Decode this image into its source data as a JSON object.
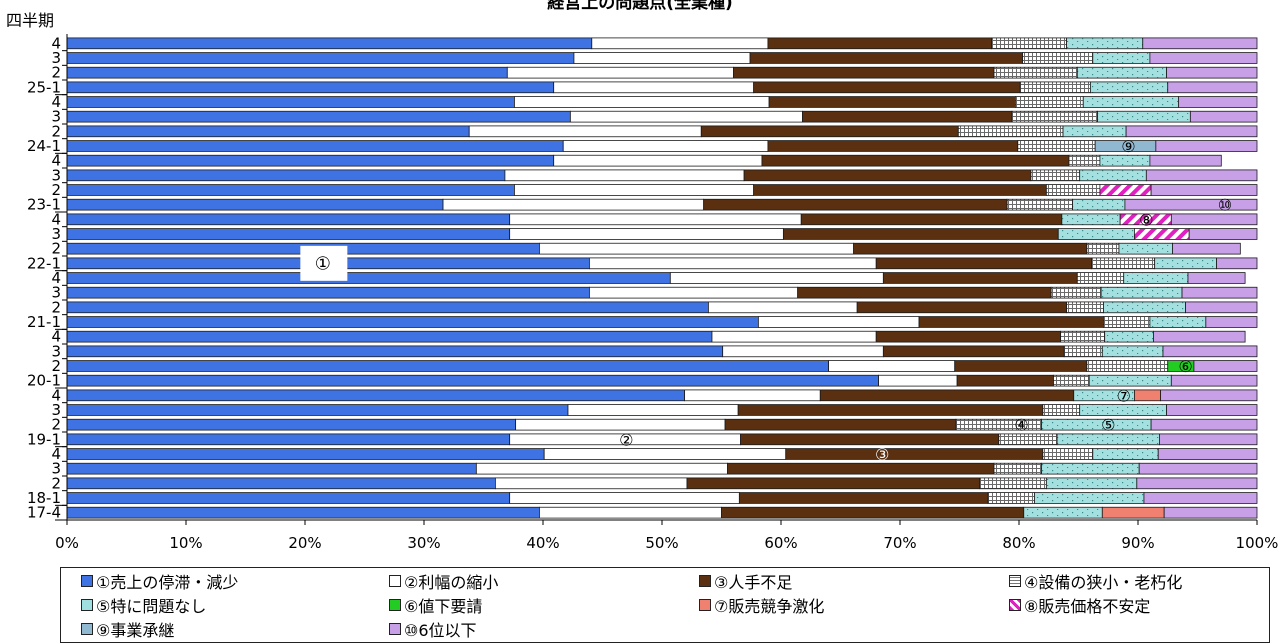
{
  "chart_data": {
    "type": "bar",
    "orientation": "horizontal",
    "stacked": "100%",
    "title": "経営上の問題点(全業種)",
    "ylabel": "四半期",
    "xlim": [
      0,
      100
    ],
    "x_ticks": [
      "0%",
      "10%",
      "20%",
      "30%",
      "40%",
      "50%",
      "60%",
      "70%",
      "80%",
      "90%",
      "100%"
    ],
    "grid": false,
    "legend_position": "bottom",
    "categories": [
      "4",
      "3",
      "2",
      "25-1",
      "4",
      "3",
      "2",
      "24-1",
      "4",
      "3",
      "2",
      "23-1",
      "4",
      "3",
      "2",
      "22-1",
      "4",
      "3",
      "2",
      "21-1",
      "4",
      "3",
      "2",
      "20-1",
      "4",
      "3",
      "2",
      "19-1",
      "4",
      "3",
      "2",
      "18-1",
      "17-4"
    ],
    "series": [
      {
        "name": "①売上の停滞・減少",
        "color": "#3f73e3",
        "values": [
          44.1,
          42.6,
          37.0,
          40.9,
          37.6,
          42.3,
          33.8,
          41.7,
          40.9,
          36.8,
          37.6,
          31.6,
          37.2,
          37.2,
          39.7,
          43.9,
          50.7,
          43.9,
          53.9,
          58.1,
          54.2,
          55.1,
          64.0,
          68.2,
          51.9,
          42.1,
          37.7,
          37.2,
          40.1,
          34.4,
          36.0,
          37.2,
          39.7
        ]
      },
      {
        "name": "②利幅の縮小",
        "color": "#ffffff",
        "values": [
          14.8,
          14.8,
          19.0,
          16.8,
          21.4,
          19.5,
          19.5,
          17.2,
          17.5,
          20.1,
          20.1,
          21.9,
          24.5,
          23.0,
          26.4,
          24.1,
          17.9,
          17.5,
          12.5,
          13.5,
          13.8,
          13.5,
          10.6,
          6.6,
          11.4,
          14.3,
          17.6,
          19.4,
          20.3,
          21.1,
          16.1,
          19.3,
          15.3
        ]
      },
      {
        "name": "③人手不足",
        "color": "#5a3011",
        "values": [
          18.8,
          22.9,
          21.9,
          22.4,
          20.7,
          17.6,
          21.6,
          21.0,
          25.8,
          24.1,
          24.6,
          25.5,
          21.9,
          23.1,
          19.6,
          18.1,
          16.3,
          21.3,
          17.6,
          15.5,
          15.5,
          15.2,
          11.1,
          8.1,
          21.3,
          25.6,
          19.4,
          21.7,
          21.6,
          22.4,
          24.6,
          20.9,
          25.4
        ]
      },
      {
        "name": "④設備の狭小・老朽化",
        "color": "#cfcfcf",
        "values": [
          6.3,
          5.9,
          7.0,
          5.9,
          5.7,
          7.2,
          8.8,
          6.5,
          2.6,
          4.1,
          4.5,
          5.5,
          0.0,
          0.0,
          2.7,
          5.3,
          3.9,
          4.2,
          3.1,
          3.9,
          3.7,
          3.2,
          6.8,
          3.0,
          0.0,
          3.1,
          7.2,
          4.9,
          4.2,
          4.0,
          5.6,
          3.9,
          0.0
        ]
      },
      {
        "name": "⑤特に問題なし",
        "color": "#9fdfdf",
        "values": [
          6.4,
          4.8,
          7.5,
          6.5,
          8.0,
          7.8,
          5.3,
          0.0,
          4.2,
          5.6,
          0.0,
          4.4,
          4.9,
          6.4,
          4.5,
          5.2,
          5.4,
          6.8,
          6.9,
          4.7,
          4.1,
          5.1,
          0.0,
          6.9,
          5.1,
          7.3,
          9.2,
          8.6,
          5.5,
          8.2,
          7.6,
          9.2,
          6.6
        ]
      },
      {
        "name": "⑥値下要請",
        "color": "#22cc22",
        "values": [
          0,
          0,
          0,
          0,
          0,
          0,
          0,
          0,
          0,
          0,
          0,
          0,
          0,
          0,
          0,
          0,
          0,
          0,
          0,
          0,
          0,
          0,
          2.2,
          0,
          0,
          0,
          0,
          0,
          0,
          0,
          0,
          0,
          0
        ]
      },
      {
        "name": "⑦販売競争激化",
        "color": "#f08070",
        "values": [
          0,
          0,
          0,
          0,
          0,
          0,
          0,
          0,
          0,
          0,
          0,
          0,
          0,
          0,
          0,
          0,
          0,
          0,
          0,
          0,
          0,
          0,
          0,
          0,
          2.2,
          0,
          0,
          0,
          0,
          0,
          0,
          0,
          5.2
        ]
      },
      {
        "name": "⑧販売価格不安定",
        "color": "#e020c0",
        "values": [
          0,
          0,
          0,
          0,
          0,
          0,
          0,
          0,
          0,
          0,
          4.3,
          0,
          4.3,
          4.6,
          0,
          0,
          0,
          0,
          0,
          0,
          0,
          0,
          0,
          0,
          0,
          0,
          0,
          0,
          0,
          0,
          0,
          0,
          0
        ]
      },
      {
        "name": "⑨事業承継",
        "color": "#90b8d0",
        "values": [
          0,
          0,
          0,
          0,
          0,
          0,
          0,
          5.1,
          0,
          0,
          0,
          0,
          0,
          0,
          0,
          0,
          0,
          0,
          0,
          0,
          0,
          0,
          0,
          0,
          0,
          0,
          0,
          0,
          0,
          0,
          0,
          0,
          0
        ]
      },
      {
        "name": "⑩6位以下",
        "color": "#c8a0e8",
        "values": [
          9.6,
          9.0,
          7.6,
          7.5,
          6.6,
          5.6,
          11.0,
          8.5,
          6.0,
          9.3,
          8.9,
          11.1,
          7.2,
          5.7,
          5.7,
          3.4,
          4.8,
          6.3,
          6.0,
          4.3,
          7.7,
          7.9,
          5.3,
          7.2,
          8.1,
          7.6,
          8.9,
          8.2,
          8.3,
          9.9,
          10.1,
          9.5,
          7.8
        ]
      }
    ],
    "annotations": [
      {
        "text": "①",
        "series": 0,
        "x": 21.5,
        "category": "22-1",
        "boxed": true
      },
      {
        "text": "②",
        "series": 1,
        "x": 47.0,
        "category": "19-1"
      },
      {
        "text": "③",
        "series": 2,
        "x": 68.5,
        "category": "4",
        "category_index": 28
      },
      {
        "text": "④",
        "series": 3,
        "x": 80.2,
        "category": "2",
        "category_index": 26
      },
      {
        "text": "⑤",
        "series": 4,
        "x": 87.5,
        "category": "2",
        "category_index": 26
      },
      {
        "text": "⑥",
        "series": 5,
        "x": 94.0,
        "category": "2",
        "category_index": 22
      },
      {
        "text": "⑦",
        "series": 6,
        "x": 88.8,
        "category": "4",
        "category_index": 24
      },
      {
        "text": "⑧",
        "series": 7,
        "x": 90.7,
        "category": "4",
        "category_index": 12
      },
      {
        "text": "⑨",
        "series": 8,
        "x": 89.2,
        "category": "24-1"
      },
      {
        "text": "⑩",
        "series": 9,
        "x": 97.3,
        "category": "23-1"
      }
    ]
  }
}
